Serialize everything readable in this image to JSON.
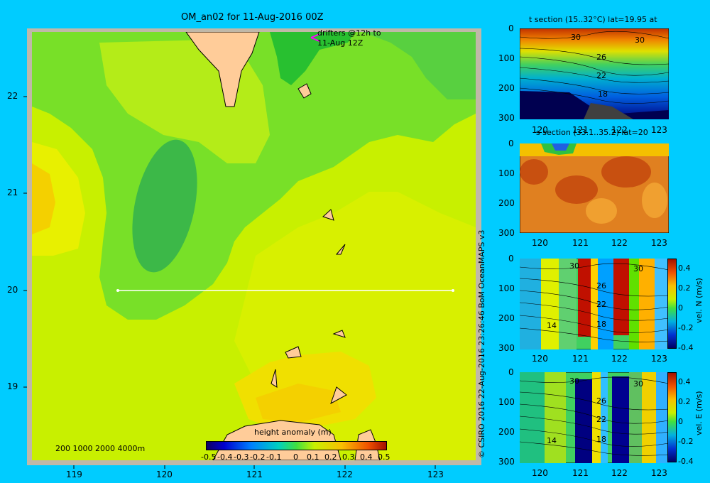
{
  "main_map": {
    "title": "OM_an02 for 11-Aug-2016 00Z",
    "x_ticks": [
      "119",
      "120",
      "121",
      "122",
      "123"
    ],
    "y_ticks": [
      "22",
      "21",
      "20",
      "19"
    ],
    "drifter_note_line1": "drifters @12h to",
    "drifter_note_line2": "11-Aug 12Z",
    "depth_legend": "200  1000  2000  4000m",
    "colorbar_title": "height anomaly  (m)",
    "colorbar_ticks": [
      "-0.5",
      "-0.4",
      "-0.3",
      "-0.2",
      "-0.1",
      "0",
      "0.1",
      "0.2",
      "0.3",
      "0.4",
      "0.5"
    ]
  },
  "credit": "© CSIRO 2016   22-Aug-2016 23:26:46 BoM OceanMAPS v3",
  "panels": {
    "t_section": {
      "title": "t section (15..32°C) lat=19.95 at",
      "labels": [
        "30",
        "30",
        "26",
        "22",
        "18"
      ]
    },
    "s_section": {
      "title": "s section (33.1..35.2) lat=20"
    },
    "v_section": {
      "label": "vel. N  (m/s)",
      "labels": [
        "30",
        "30",
        "26",
        "22",
        "18",
        "14"
      ]
    },
    "u_section": {
      "label": "vel. E  (m/s)",
      "labels": [
        "30",
        "30",
        "26",
        "22",
        "18",
        "14"
      ]
    },
    "x_ticks": [
      "120",
      "121",
      "122",
      "123"
    ],
    "y_ticks": [
      "0",
      "100",
      "200",
      "300"
    ],
    "vel_ticks": [
      "0.4",
      "0.2",
      "0",
      "-0.2",
      "-0.4"
    ]
  },
  "chart_data": [
    {
      "type": "heatmap",
      "title": "OM_an02 for 11-Aug-2016 00Z",
      "variable": "height anomaly (m)",
      "xlim": [
        118.5,
        123.5
      ],
      "ylim": [
        18.3,
        22.7
      ],
      "colorbar_range": [
        -0.5,
        0.5
      ],
      "section_line": {
        "lat": 20.0,
        "lon_range": [
          119.5,
          123.2
        ]
      }
    },
    {
      "type": "heatmap",
      "title": "t section (15..32°C) lat=19.95 at",
      "xlim": [
        119.5,
        123.2
      ],
      "ylim": [
        300,
        0
      ],
      "contours": [
        30,
        26,
        22,
        18
      ]
    },
    {
      "type": "heatmap",
      "title": "s section (33.1..35.2) lat=20",
      "xlim": [
        119.5,
        123.2
      ],
      "ylim": [
        300,
        0
      ]
    },
    {
      "type": "heatmap",
      "title": "vel. N (m/s)",
      "xlim": [
        119.5,
        123.2
      ],
      "ylim": [
        300,
        0
      ],
      "colorbar_range": [
        -0.4,
        0.4
      ]
    },
    {
      "type": "heatmap",
      "title": "vel. E (m/s)",
      "xlim": [
        119.5,
        123.2
      ],
      "ylim": [
        300,
        0
      ],
      "colorbar_range": [
        -0.4,
        0.4
      ]
    }
  ]
}
